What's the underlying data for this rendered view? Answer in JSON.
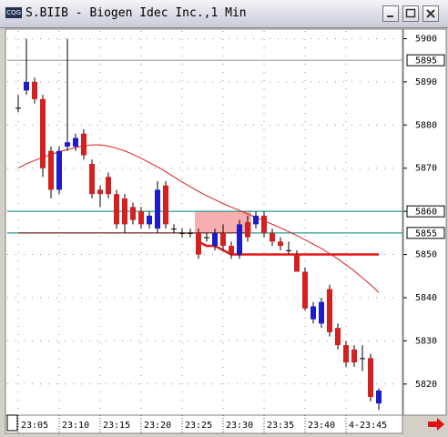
{
  "window_title": "S.BIIB - Biogen Idec Inc.,1 Min",
  "chart_data": {
    "type": "candlestick",
    "categories": [
      "23:05",
      null,
      null,
      null,
      null,
      "23:10",
      null,
      null,
      null,
      null,
      "23:15",
      null,
      null,
      null,
      null,
      "23:20",
      null,
      null,
      null,
      null,
      "23:25",
      null,
      null,
      null,
      null,
      "23:30",
      null,
      null,
      null,
      null,
      "23:35",
      null,
      null,
      null,
      null,
      "23:40",
      null,
      null,
      null,
      null,
      "4-23:45",
      null,
      null,
      null,
      null
    ],
    "open": [
      5884,
      5888,
      5890,
      5886,
      5874,
      5865,
      5875,
      5875,
      5878,
      5871,
      5865,
      5868,
      5864,
      5863,
      5861,
      5860,
      5857,
      5856,
      5866,
      5856,
      5855,
      5855,
      5855,
      5854,
      5852,
      5855,
      5852,
      5850,
      5857.5,
      5857,
      5859,
      5855,
      5853,
      5851,
      5850,
      5846,
      5835,
      5834,
      5842,
      5833,
      5829,
      5828,
      5826,
      5826,
      5815.5
    ],
    "high": [
      5887,
      5900,
      5891,
      5887,
      5875,
      5875,
      5900,
      5878,
      5879,
      5872,
      5866,
      5869,
      5865,
      5864,
      5862,
      5861,
      5860,
      5867,
      5867,
      5857,
      5856,
      5856,
      5856,
      5855,
      5856,
      5857,
      5853,
      5858,
      5859,
      5860,
      5860,
      5856,
      5854,
      5853,
      5851,
      5847,
      5839,
      5840,
      5843,
      5834,
      5830,
      5829,
      5829,
      5827,
      5819
    ],
    "low": [
      5883,
      5887,
      5885,
      5868,
      5863,
      5864,
      5874,
      5874,
      5872,
      5863,
      5861,
      5863,
      5856,
      5855,
      5857,
      5856,
      5856,
      5855,
      5856,
      5855,
      5854,
      5854,
      5849,
      5853,
      5851,
      5851,
      5849,
      5849,
      5853,
      5856,
      5854,
      5852,
      5851,
      5850,
      5846,
      5837,
      5834,
      5833,
      5831,
      5828,
      5824,
      5824,
      5823,
      5816,
      5814
    ],
    "close": [
      5884,
      5890,
      5886,
      5870,
      5865,
      5874,
      5876,
      5877,
      5873,
      5864,
      5864,
      5864,
      5857,
      5857,
      5858,
      5857,
      5859,
      5865,
      5857,
      5856,
      5855,
      5855,
      5850,
      5854,
      5855,
      5852,
      5850,
      5857,
      5854,
      5859,
      5855,
      5853,
      5852,
      5851,
      5846,
      5837.5,
      5838,
      5839,
      5832,
      5829,
      5825,
      5825,
      5826,
      5817,
      5818.5
    ],
    "up_color": "#1c1cc8",
    "down_color": "#d42020",
    "series": [
      {
        "color": "#d82020",
        "width": 1,
        "values": [
          5870,
          5871,
          5871.8,
          5872.5,
          5873.2,
          5873.8,
          5874.3,
          5874.8,
          5875.2,
          5875.4,
          5875.4,
          5875.1,
          5874.6,
          5874,
          5873.2,
          5872.3,
          5871.3,
          5870.3,
          5869.2,
          5868,
          5866.8,
          5865.7,
          5864.6,
          5863.6,
          5862.7,
          5861.8,
          5861,
          5860.2,
          5859.4,
          5858.6,
          5857.8,
          5857,
          5856.2,
          5855.3,
          5854.4,
          5853.4,
          5852.4,
          5851.4,
          5850.2,
          5849,
          5847.6,
          5846.2,
          5844.6,
          5843,
          5841.2
        ]
      },
      {
        "color": "#8a1010",
        "width": 1,
        "values": [
          5855,
          5855,
          5855,
          5855,
          5855,
          5855,
          5855,
          5855,
          5855,
          5855,
          5855,
          5855,
          5855,
          5855,
          5855,
          5855,
          5855,
          5855,
          5855,
          5855,
          5855,
          5855,
          5855,
          5855,
          5855,
          5855,
          5855,
          5855,
          5855,
          null,
          null,
          null,
          null,
          null,
          null,
          null,
          null,
          null,
          null,
          null,
          null,
          null,
          null,
          null,
          null
        ]
      },
      {
        "color": "#e01818",
        "width": 2.5,
        "values": [
          null,
          null,
          null,
          null,
          null,
          null,
          null,
          null,
          null,
          null,
          null,
          null,
          null,
          null,
          null,
          null,
          null,
          null,
          null,
          null,
          null,
          null,
          5853,
          5852,
          5852,
          5851,
          5850,
          5850,
          5850,
          5850,
          5850,
          5850,
          5850,
          5850,
          5850,
          5850,
          5850,
          5850,
          5850,
          5850,
          5850,
          5850,
          5850,
          5850,
          5850
        ]
      }
    ],
    "levels": [
      {
        "value": 5895,
        "color": "#a0a0a0"
      },
      {
        "value": 5860,
        "color": "#2a9a90"
      },
      {
        "value": 5855,
        "color": "#2a9a90"
      }
    ],
    "zone": {
      "from": 22,
      "to": 28,
      "low": 5855,
      "high": 5860,
      "color": "#f4a0a0"
    },
    "ylim": [
      5813,
      5902
    ],
    "yticks": [
      5820,
      5830,
      5840,
      5850,
      5860,
      5870,
      5880,
      5890,
      5900
    ],
    "grid": true
  }
}
